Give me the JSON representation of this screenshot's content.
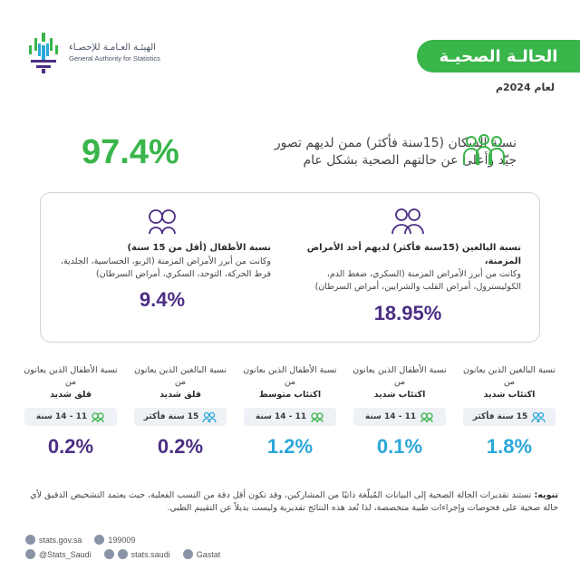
{
  "header": {
    "org_ar": "الهيئـة العـامـة للإحصـاء",
    "org_en": "General Authority for Statistics",
    "title": "الحالـة الصحيـة",
    "year": "لعام 2024م"
  },
  "top": {
    "value": "97.4%",
    "text": "نسبة السكان (15سنة فأكثر) ممن لديهم تصور جيّد وأعلى عن حالتهم الصحية بشكل عام"
  },
  "adults_card": {
    "head": "نسبة البالغين (15سنة فأكثر) لديهم أحد الأمراض المزمنة،",
    "body": "وكانت من أبرز الأمراض المزمنة (السكري، ضغط الدم، الكوليسترول، أمراض القلب والشرايين، أمراض السرطان)",
    "value": "18.95%"
  },
  "children_card": {
    "head": "نسبة الأطفال (أقل من 15 سنة)",
    "body": "وكانت من أبرز الأمراض المزمنة (الربو، الحساسية، الجلدية، فرط الحركة، التوحد، السكري، أمراض السرطان)",
    "value": "9.4%"
  },
  "stats": [
    {
      "label": "نسبة البالغين الذين يعانون من",
      "strong": "اكتئاب شديد",
      "pill": "15 سنة فأكثر",
      "value": "1.8%",
      "color": "#2aa7d8"
    },
    {
      "label": "نسبة الأطفال الذين يعانون من",
      "strong": "اكتئاب شديد",
      "pill": "11 - 14 سنة",
      "value": "0.1%",
      "color": "#2aa7d8"
    },
    {
      "label": "نسبة الأطفال الذين يعانون من",
      "strong": "اكتئاب متوسط",
      "pill": "11 - 14 سنة",
      "value": "1.2%",
      "color": "#2aa7d8"
    },
    {
      "label": "نسبة البالغين الذين يعانون من",
      "strong": "قلق شديد",
      "pill": "15 سنة فأكثر",
      "value": "0.2%",
      "color": "#4b2e83"
    },
    {
      "label": "نسبة الأطفال الذين يعانون من",
      "strong": "قلق شديد",
      "pill": "11 - 14 سنة",
      "value": "0.2%",
      "color": "#4b2e83"
    }
  ],
  "note": {
    "title": "تنويه:",
    "text": "تستند تقديرات الحالة الصحية إلى البيانات المُبلّغة ذاتيًا من المشاركين، وقد تكون أقل دقة من النسب الفعلية، حيث يعتمد التشخيص الدقيق لأي حالة صحية على فحوصات وإجراءات طبية متخصصة، لذا تُعد هذه النتائج تقديرية وليست بديلاً عن التقييم الطبي."
  },
  "footer": {
    "website": "stats.gov.sa",
    "phone": "199009",
    "twitter": "@Stats_Saudi",
    "social": "stats.saudi",
    "linkedin": "Gastat"
  },
  "colors": {
    "green": "#39b54a",
    "purple": "#4b2e83",
    "blue": "#2aa7d8"
  }
}
